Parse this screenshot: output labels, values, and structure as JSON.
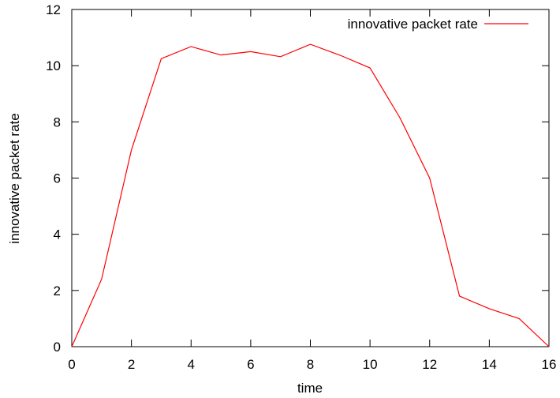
{
  "chart_data": {
    "type": "line",
    "xlabel": "time",
    "ylabel": "innovative packet rate",
    "xlim": [
      0,
      16
    ],
    "ylim": [
      0,
      12
    ],
    "xticks": [
      "0",
      "2",
      "4",
      "6",
      "8",
      "10",
      "12",
      "14",
      "16"
    ],
    "yticks": [
      "0",
      "2",
      "4",
      "6",
      "8",
      "10",
      "12"
    ],
    "grid": false,
    "legend_position": "top-right",
    "series": [
      {
        "name": "innovative packet rate",
        "color": "#ff0000",
        "x": [
          0,
          1,
          2,
          3,
          4,
          5,
          6,
          7,
          8,
          9,
          10,
          11,
          12,
          13,
          14,
          15,
          16
        ],
        "y": [
          0,
          2.4,
          7.0,
          10.25,
          10.68,
          10.38,
          10.5,
          10.32,
          10.76,
          10.37,
          9.92,
          8.15,
          6.0,
          1.8,
          1.35,
          1.0,
          0
        ]
      }
    ]
  }
}
